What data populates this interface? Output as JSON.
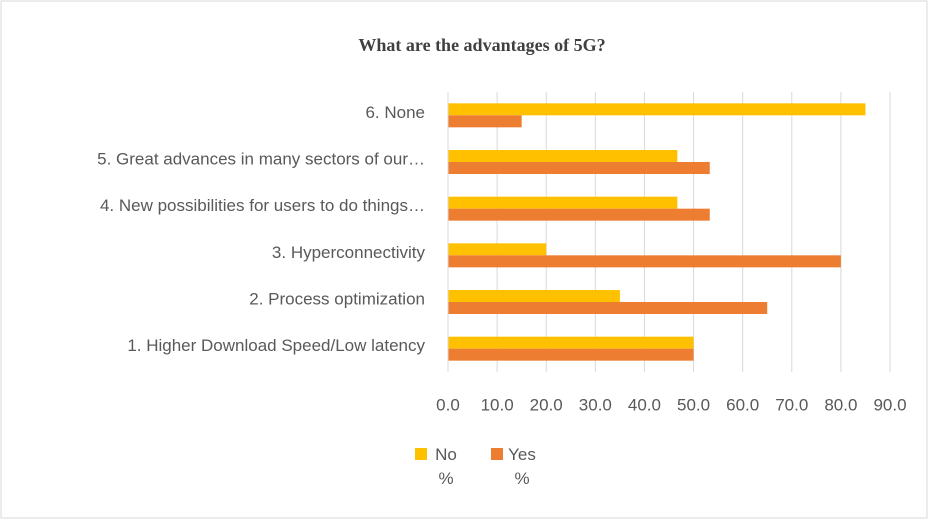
{
  "chart_data": {
    "type": "bar",
    "orientation": "horizontal",
    "title": "What are the advantages of 5G?",
    "categories": [
      "1. Higher Download Speed/Low latency",
      "2. Process optimization",
      "3. Hyperconnectivity",
      "4. New possibilities for users to do things…",
      "5. Great advances in many sectors of our…",
      "6. None"
    ],
    "series": [
      {
        "name": "No %",
        "color": "#FFC000",
        "values": [
          50,
          35,
          20,
          46.7,
          46.7,
          85
        ]
      },
      {
        "name": "Yes %",
        "color": "#ED7D31",
        "values": [
          50,
          65,
          80,
          53.3,
          53.3,
          15
        ]
      }
    ],
    "xlim": [
      0,
      90
    ],
    "xticks": [
      {
        "value": 0,
        "label": "0.0"
      },
      {
        "value": 10,
        "label": "10.0"
      },
      {
        "value": 20,
        "label": "20.0"
      },
      {
        "value": 30,
        "label": "30.0"
      },
      {
        "value": 40,
        "label": "40.0"
      },
      {
        "value": 50,
        "label": "50.0"
      },
      {
        "value": 60,
        "label": "60.0"
      },
      {
        "value": 70,
        "label": "70.0"
      },
      {
        "value": 80,
        "label": "80.0"
      },
      {
        "value": 90,
        "label": "90.0"
      }
    ],
    "grid": true,
    "legend": "bottom"
  }
}
